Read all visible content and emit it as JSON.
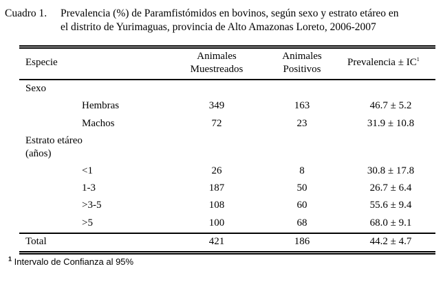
{
  "caption": {
    "label": "Cuadro 1.",
    "line1": "Prevalencia (%) de Paramfistómidos en bovinos, según sexo y estrato etáreo en",
    "line2": "el distrito de Yurimaguas, provincia de Alto Amazonas Loreto, 2006-2007"
  },
  "header": {
    "especie": "Especie",
    "muestreados_1": "Animales",
    "muestreados_2": "Muestreados",
    "positivos_1": "Animales",
    "positivos_2": "Positivos",
    "prevalencia": "Prevalencia ± IC",
    "prevalencia_sup": "1"
  },
  "groups": {
    "sexo": "Sexo",
    "estrato_1": "Estrato etáreo",
    "estrato_2": "(años)"
  },
  "rows": [
    {
      "label": "Hembras",
      "muestreados": "349",
      "positivos": "163",
      "prevalencia": "46.7 ± 5.2"
    },
    {
      "label": "Machos",
      "muestreados": "72",
      "positivos": "23",
      "prevalencia": "31.9 ± 10.8"
    },
    {
      "label": "<1",
      "muestreados": "26",
      "positivos": "8",
      "prevalencia": "30.8 ± 17.8"
    },
    {
      "label": "1-3",
      "muestreados": "187",
      "positivos": "50",
      "prevalencia": "26.7 ± 6.4"
    },
    {
      "label": ">3-5",
      "muestreados": "108",
      "positivos": "60",
      "prevalencia": "55.6 ± 9.4"
    },
    {
      "label": ">5",
      "muestreados": "100",
      "positivos": "68",
      "prevalencia": "68.0 ± 9.1"
    }
  ],
  "total": {
    "label": "Total",
    "muestreados": "421",
    "positivos": "186",
    "prevalencia": "44.2 ± 4.7"
  },
  "footnote": {
    "marker": "1",
    "text": "Intervalo de Confianza al 95%"
  }
}
